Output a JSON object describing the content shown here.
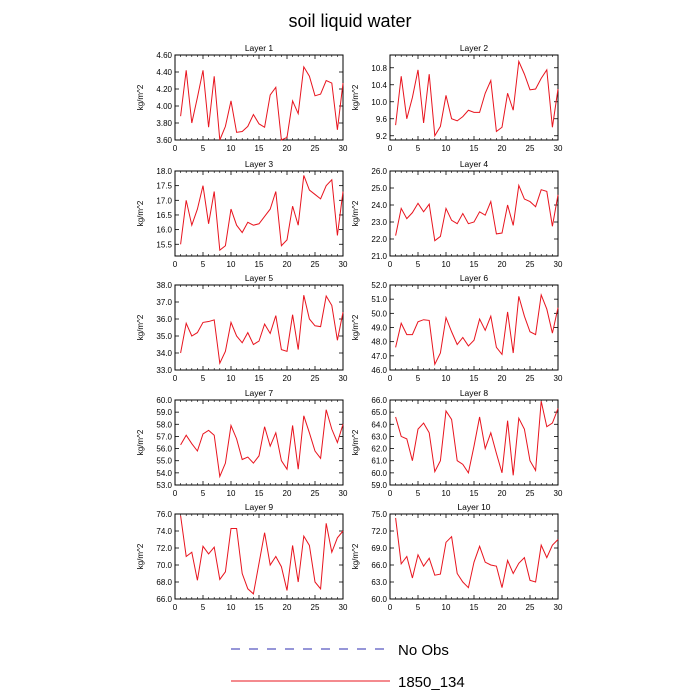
{
  "title": "soil liquid water",
  "legend": {
    "items": [
      {
        "label": "No Obs",
        "color": "#2d2db0",
        "dash": "dashed"
      },
      {
        "label": "1850_134",
        "color": "#e8141e",
        "dash": "solid"
      }
    ]
  },
  "chart_data": [
    {
      "type": "line",
      "title": "Layer 1",
      "ylabel": "kg/m^2",
      "xlim": [
        0,
        30
      ],
      "ylim": [
        3.6,
        4.6
      ],
      "xticks": [
        0,
        5,
        10,
        15,
        20,
        25,
        30
      ],
      "yticks": [
        3.6,
        3.8,
        4.0,
        4.2,
        4.4,
        4.6
      ],
      "yticklabels": [
        "3.60",
        "3.80",
        "4.00",
        "4.20",
        "4.40",
        "4.60"
      ],
      "series": [
        {
          "name": "1850_134",
          "x": [
            1,
            2,
            3,
            4,
            5,
            6,
            7,
            8,
            9,
            10,
            11,
            12,
            13,
            14,
            15,
            16,
            17,
            18,
            19,
            20,
            21,
            22,
            23,
            24,
            25,
            26,
            27,
            28,
            29,
            30
          ],
          "values": [
            3.88,
            4.42,
            3.8,
            4.1,
            4.42,
            3.75,
            4.35,
            3.6,
            3.76,
            4.06,
            3.69,
            3.7,
            3.76,
            3.9,
            3.79,
            3.75,
            4.13,
            4.22,
            3.6,
            3.63,
            4.06,
            3.91,
            4.46,
            4.35,
            4.12,
            4.14,
            4.3,
            4.27,
            3.72,
            4.27
          ]
        }
      ]
    },
    {
      "type": "line",
      "title": "Layer 2",
      "ylabel": "kg/m^2",
      "xlim": [
        0,
        30
      ],
      "ylim": [
        9.1,
        11.1
      ],
      "xticks": [
        0,
        5,
        10,
        15,
        20,
        25,
        30
      ],
      "yticks": [
        9.2,
        9.6,
        10.0,
        10.4,
        10.8
      ],
      "yticklabels": [
        "9.2",
        "9.6",
        "10.0",
        "10.4",
        "10.8"
      ],
      "series": [
        {
          "name": "1850_134",
          "x": [
            1,
            2,
            3,
            4,
            5,
            6,
            7,
            8,
            9,
            10,
            11,
            12,
            13,
            14,
            15,
            16,
            17,
            18,
            19,
            20,
            21,
            22,
            23,
            24,
            25,
            26,
            27,
            28,
            29,
            30
          ],
          "values": [
            9.45,
            10.6,
            9.6,
            10.1,
            10.75,
            9.5,
            10.65,
            9.2,
            9.42,
            10.15,
            9.6,
            9.55,
            9.65,
            9.8,
            9.75,
            9.75,
            10.2,
            10.5,
            9.3,
            9.4,
            10.2,
            9.8,
            10.95,
            10.65,
            10.28,
            10.3,
            10.55,
            10.75,
            9.4,
            10.3
          ]
        }
      ]
    },
    {
      "type": "line",
      "title": "Layer 3",
      "ylabel": "kg/m^2",
      "xlim": [
        0,
        30
      ],
      "ylim": [
        15.1,
        18.0
      ],
      "xticks": [
        0,
        5,
        10,
        15,
        20,
        25,
        30
      ],
      "yticks": [
        15.5,
        16.0,
        16.5,
        17.0,
        17.5,
        18.0
      ],
      "yticklabels": [
        "15.5",
        "16.0",
        "16.5",
        "17.0",
        "17.5",
        "18.0"
      ],
      "series": [
        {
          "name": "1850_134",
          "x": [
            1,
            2,
            3,
            4,
            5,
            6,
            7,
            8,
            9,
            10,
            11,
            12,
            13,
            14,
            15,
            16,
            17,
            18,
            19,
            20,
            21,
            22,
            23,
            24,
            25,
            26,
            27,
            28,
            29,
            30
          ],
          "values": [
            15.5,
            17.0,
            16.15,
            16.7,
            17.5,
            16.2,
            17.3,
            15.3,
            15.45,
            16.7,
            16.15,
            15.9,
            16.25,
            16.15,
            16.2,
            16.45,
            16.7,
            17.3,
            15.45,
            15.65,
            16.8,
            16.15,
            17.85,
            17.35,
            17.2,
            17.05,
            17.5,
            17.7,
            15.8,
            17.3
          ]
        }
      ]
    },
    {
      "type": "line",
      "title": "Layer 4",
      "ylabel": "kg/m^2",
      "xlim": [
        0,
        30
      ],
      "ylim": [
        21.0,
        26.0
      ],
      "xticks": [
        0,
        5,
        10,
        15,
        20,
        25,
        30
      ],
      "yticks": [
        21.0,
        22.0,
        23.0,
        24.0,
        25.0,
        26.0
      ],
      "yticklabels": [
        "21.0",
        "22.0",
        "23.0",
        "24.0",
        "25.0",
        "26.0"
      ],
      "series": [
        {
          "name": "1850_134",
          "x": [
            1,
            2,
            3,
            4,
            5,
            6,
            7,
            8,
            9,
            10,
            11,
            12,
            13,
            14,
            15,
            16,
            17,
            18,
            19,
            20,
            21,
            22,
            23,
            24,
            25,
            26,
            27,
            28,
            29,
            30
          ],
          "values": [
            22.2,
            23.8,
            23.2,
            23.55,
            24.1,
            23.6,
            24.05,
            21.9,
            22.15,
            23.8,
            23.1,
            22.9,
            23.5,
            22.9,
            23.0,
            23.6,
            23.4,
            24.2,
            22.3,
            22.35,
            24.0,
            22.8,
            25.15,
            24.35,
            24.2,
            23.9,
            24.9,
            24.8,
            22.75,
            24.6
          ]
        }
      ]
    },
    {
      "type": "line",
      "title": "Layer 5",
      "ylabel": "kg/m^2",
      "xlim": [
        0,
        30
      ],
      "ylim": [
        33.0,
        38.0
      ],
      "xticks": [
        0,
        5,
        10,
        15,
        20,
        25,
        30
      ],
      "yticks": [
        33.0,
        34.0,
        35.0,
        36.0,
        37.0,
        38.0
      ],
      "yticklabels": [
        "33.0",
        "34.0",
        "35.0",
        "36.0",
        "37.0",
        "38.0"
      ],
      "series": [
        {
          "name": "1850_134",
          "x": [
            1,
            2,
            3,
            4,
            5,
            6,
            7,
            8,
            9,
            10,
            11,
            12,
            13,
            14,
            15,
            16,
            17,
            18,
            19,
            20,
            21,
            22,
            23,
            24,
            25,
            26,
            27,
            28,
            29,
            30
          ],
          "values": [
            34.0,
            35.75,
            35.0,
            35.2,
            35.8,
            35.85,
            35.95,
            33.4,
            34.1,
            35.8,
            35.0,
            34.6,
            35.2,
            34.5,
            34.7,
            35.7,
            35.15,
            36.2,
            34.2,
            34.1,
            36.25,
            34.2,
            37.4,
            36.0,
            35.6,
            35.55,
            37.35,
            36.8,
            34.75,
            36.4
          ]
        }
      ]
    },
    {
      "type": "line",
      "title": "Layer 6",
      "ylabel": "kg/m^2",
      "xlim": [
        0,
        30
      ],
      "ylim": [
        46.0,
        52.0
      ],
      "xticks": [
        0,
        5,
        10,
        15,
        20,
        25,
        30
      ],
      "yticks": [
        46.0,
        47.0,
        48.0,
        49.0,
        50.0,
        51.0,
        52.0
      ],
      "yticklabels": [
        "46.0",
        "47.0",
        "48.0",
        "49.0",
        "50.0",
        "51.0",
        "52.0"
      ],
      "series": [
        {
          "name": "1850_134",
          "x": [
            1,
            2,
            3,
            4,
            5,
            6,
            7,
            8,
            9,
            10,
            11,
            12,
            13,
            14,
            15,
            16,
            17,
            18,
            19,
            20,
            21,
            22,
            23,
            24,
            25,
            26,
            27,
            28,
            29,
            30
          ],
          "values": [
            47.6,
            49.3,
            48.5,
            48.5,
            49.4,
            49.55,
            49.5,
            46.4,
            47.2,
            49.7,
            48.7,
            47.8,
            48.3,
            47.7,
            48.1,
            49.6,
            48.8,
            49.8,
            47.6,
            47.1,
            50.1,
            47.2,
            51.2,
            49.8,
            48.7,
            48.5,
            51.3,
            50.3,
            48.6,
            50.4
          ]
        }
      ]
    },
    {
      "type": "line",
      "title": "Layer 7",
      "ylabel": "kg/m^2",
      "xlim": [
        0,
        30
      ],
      "ylim": [
        53.0,
        60.0
      ],
      "xticks": [
        0,
        5,
        10,
        15,
        20,
        25,
        30
      ],
      "yticks": [
        53.0,
        54.0,
        55.0,
        56.0,
        57.0,
        58.0,
        59.0,
        60.0
      ],
      "yticklabels": [
        "53.0",
        "54.0",
        "55.0",
        "56.0",
        "57.0",
        "58.0",
        "59.0",
        "60.0"
      ],
      "series": [
        {
          "name": "1850_134",
          "x": [
            1,
            2,
            3,
            4,
            5,
            6,
            7,
            8,
            9,
            10,
            11,
            12,
            13,
            14,
            15,
            16,
            17,
            18,
            19,
            20,
            21,
            22,
            23,
            24,
            25,
            26,
            27,
            28,
            29,
            30
          ],
          "values": [
            56.3,
            57.1,
            56.4,
            55.8,
            57.2,
            57.5,
            57.1,
            53.7,
            54.8,
            57.9,
            56.8,
            55.1,
            55.3,
            54.8,
            55.4,
            57.8,
            56.2,
            57.3,
            55.0,
            54.3,
            57.9,
            54.3,
            58.7,
            57.3,
            55.8,
            55.2,
            59.2,
            57.6,
            56.5,
            58.0
          ]
        }
      ]
    },
    {
      "type": "line",
      "title": "Layer 8",
      "ylabel": "kg/m^2",
      "xlim": [
        0,
        30
      ],
      "ylim": [
        59.0,
        66.0
      ],
      "xticks": [
        0,
        5,
        10,
        15,
        20,
        25,
        30
      ],
      "yticks": [
        59.0,
        60.0,
        61.0,
        62.0,
        63.0,
        64.0,
        65.0,
        66.0
      ],
      "yticklabels": [
        "59.0",
        "60.0",
        "61.0",
        "62.0",
        "63.0",
        "64.0",
        "65.0",
        "66.0"
      ],
      "series": [
        {
          "name": "1850_134",
          "x": [
            1,
            2,
            3,
            4,
            5,
            6,
            7,
            8,
            9,
            10,
            11,
            12,
            13,
            14,
            15,
            16,
            17,
            18,
            19,
            20,
            21,
            22,
            23,
            24,
            25,
            26,
            27,
            28,
            29,
            30
          ],
          "values": [
            64.6,
            63.0,
            62.8,
            61.0,
            63.6,
            64.1,
            63.3,
            60.1,
            61.0,
            65.1,
            64.4,
            61.0,
            60.7,
            60.0,
            62.2,
            64.6,
            62.0,
            63.3,
            61.6,
            60.0,
            64.3,
            59.8,
            64.5,
            63.6,
            61.0,
            60.2,
            65.9,
            63.8,
            64.1,
            65.3
          ]
        }
      ]
    },
    {
      "type": "line",
      "title": "Layer 9",
      "ylabel": "kg/m^2",
      "xlim": [
        0,
        30
      ],
      "ylim": [
        66.0,
        76.0
      ],
      "xticks": [
        0,
        5,
        10,
        15,
        20,
        25,
        30
      ],
      "yticks": [
        66.0,
        68.0,
        70.0,
        72.0,
        74.0,
        76.0
      ],
      "yticklabels": [
        "66.0",
        "68.0",
        "70.0",
        "72.0",
        "74.0",
        "76.0"
      ],
      "series": [
        {
          "name": "1850_134",
          "x": [
            1,
            2,
            3,
            4,
            5,
            6,
            7,
            8,
            9,
            10,
            11,
            12,
            13,
            14,
            15,
            16,
            17,
            18,
            19,
            20,
            21,
            22,
            23,
            24,
            25,
            26,
            27,
            28,
            29,
            30
          ],
          "values": [
            75.8,
            71.0,
            71.5,
            68.2,
            72.2,
            71.3,
            72.1,
            68.3,
            69.2,
            74.3,
            74.3,
            69.0,
            67.2,
            66.6,
            70.2,
            73.8,
            70.0,
            71.0,
            69.8,
            67.0,
            72.3,
            68.0,
            73.4,
            72.3,
            68.0,
            67.2,
            74.9,
            71.5,
            73.2,
            74.0
          ]
        }
      ]
    },
    {
      "type": "line",
      "title": "Layer 10",
      "ylabel": "kg/m^2",
      "xlim": [
        0,
        30
      ],
      "ylim": [
        60.0,
        75.0
      ],
      "xticks": [
        0,
        5,
        10,
        15,
        20,
        25,
        30
      ],
      "yticks": [
        60.0,
        63.0,
        66.0,
        69.0,
        72.0,
        75.0
      ],
      "yticklabels": [
        "60.0",
        "63.0",
        "66.0",
        "69.0",
        "72.0",
        "75.0"
      ],
      "series": [
        {
          "name": "1850_134",
          "x": [
            1,
            2,
            3,
            4,
            5,
            6,
            7,
            8,
            9,
            10,
            11,
            12,
            13,
            14,
            15,
            16,
            17,
            18,
            19,
            20,
            21,
            22,
            23,
            24,
            25,
            26,
            27,
            28,
            29,
            30
          ],
          "values": [
            74.3,
            66.2,
            67.5,
            63.7,
            67.8,
            65.8,
            67.2,
            64.2,
            64.4,
            70.0,
            71.0,
            64.5,
            63.0,
            62.0,
            66.5,
            69.3,
            66.5,
            66.0,
            65.8,
            62.0,
            66.8,
            64.5,
            66.3,
            67.3,
            63.3,
            63.0,
            69.5,
            67.3,
            69.5,
            70.5
          ]
        }
      ]
    }
  ]
}
